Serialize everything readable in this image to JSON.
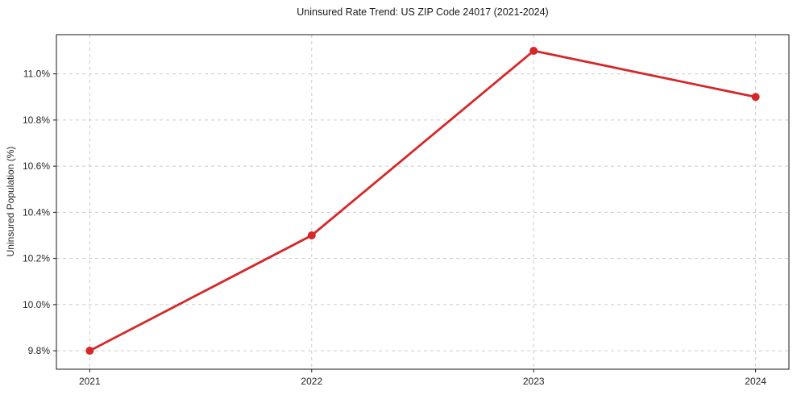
{
  "chart_data": {
    "type": "line",
    "title": "Uninsured Rate Trend: US ZIP Code 24017 (2021-2024)",
    "xlabel": "",
    "ylabel": "Uninsured Population (%)",
    "categories": [
      "2021",
      "2022",
      "2023",
      "2024"
    ],
    "values": [
      9.8,
      10.3,
      11.1,
      10.9
    ],
    "y_ticks": [
      9.8,
      10.0,
      10.2,
      10.4,
      10.6,
      10.8,
      11.0
    ],
    "y_tick_labels": [
      "9.8%",
      "10.0%",
      "10.2%",
      "10.4%",
      "10.6%",
      "10.8%",
      "11.0%"
    ],
    "ylim": [
      9.72,
      11.17
    ],
    "grid": true,
    "grid_style": "dashed",
    "legend": "none",
    "colors": {
      "line": "#d62728",
      "marker": "#d62728",
      "grid": "#cccccc",
      "axis": "#1a1a1a",
      "text": "#262626",
      "background": "#ffffff"
    }
  }
}
